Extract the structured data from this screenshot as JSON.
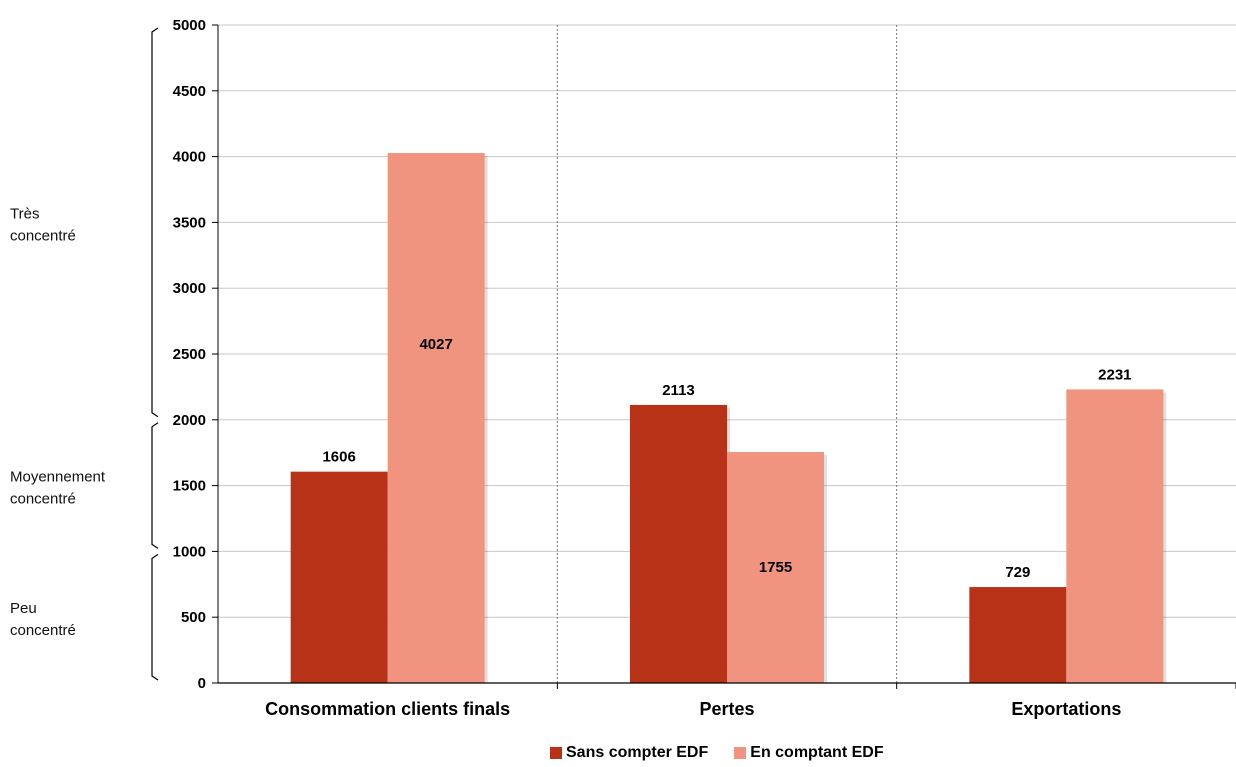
{
  "chart_data": {
    "type": "bar",
    "categories": [
      "Consommation clients finals",
      "Pertes",
      "Exportations"
    ],
    "series": [
      {
        "name": "Sans compter EDF",
        "values": [
          1606,
          2113,
          729
        ],
        "color": "#b83218"
      },
      {
        "name": "En comptant EDF",
        "values": [
          4027,
          1755,
          2231
        ],
        "color": "#f09480"
      }
    ],
    "ylim": [
      0,
      5000
    ],
    "yticks": [
      0,
      500,
      1000,
      1500,
      2000,
      2500,
      3000,
      3500,
      4000,
      4500,
      5000
    ],
    "grid": true,
    "legend_position": "bottom",
    "bands": [
      {
        "label_lines": [
          "Peu",
          "concentré"
        ],
        "from": 0,
        "to": 1000
      },
      {
        "label_lines": [
          "Moyennement",
          "concentré"
        ],
        "from": 1000,
        "to": 2000
      },
      {
        "label_lines": [
          "Très",
          "concentré"
        ],
        "from": 2000,
        "to": 5000
      }
    ]
  }
}
